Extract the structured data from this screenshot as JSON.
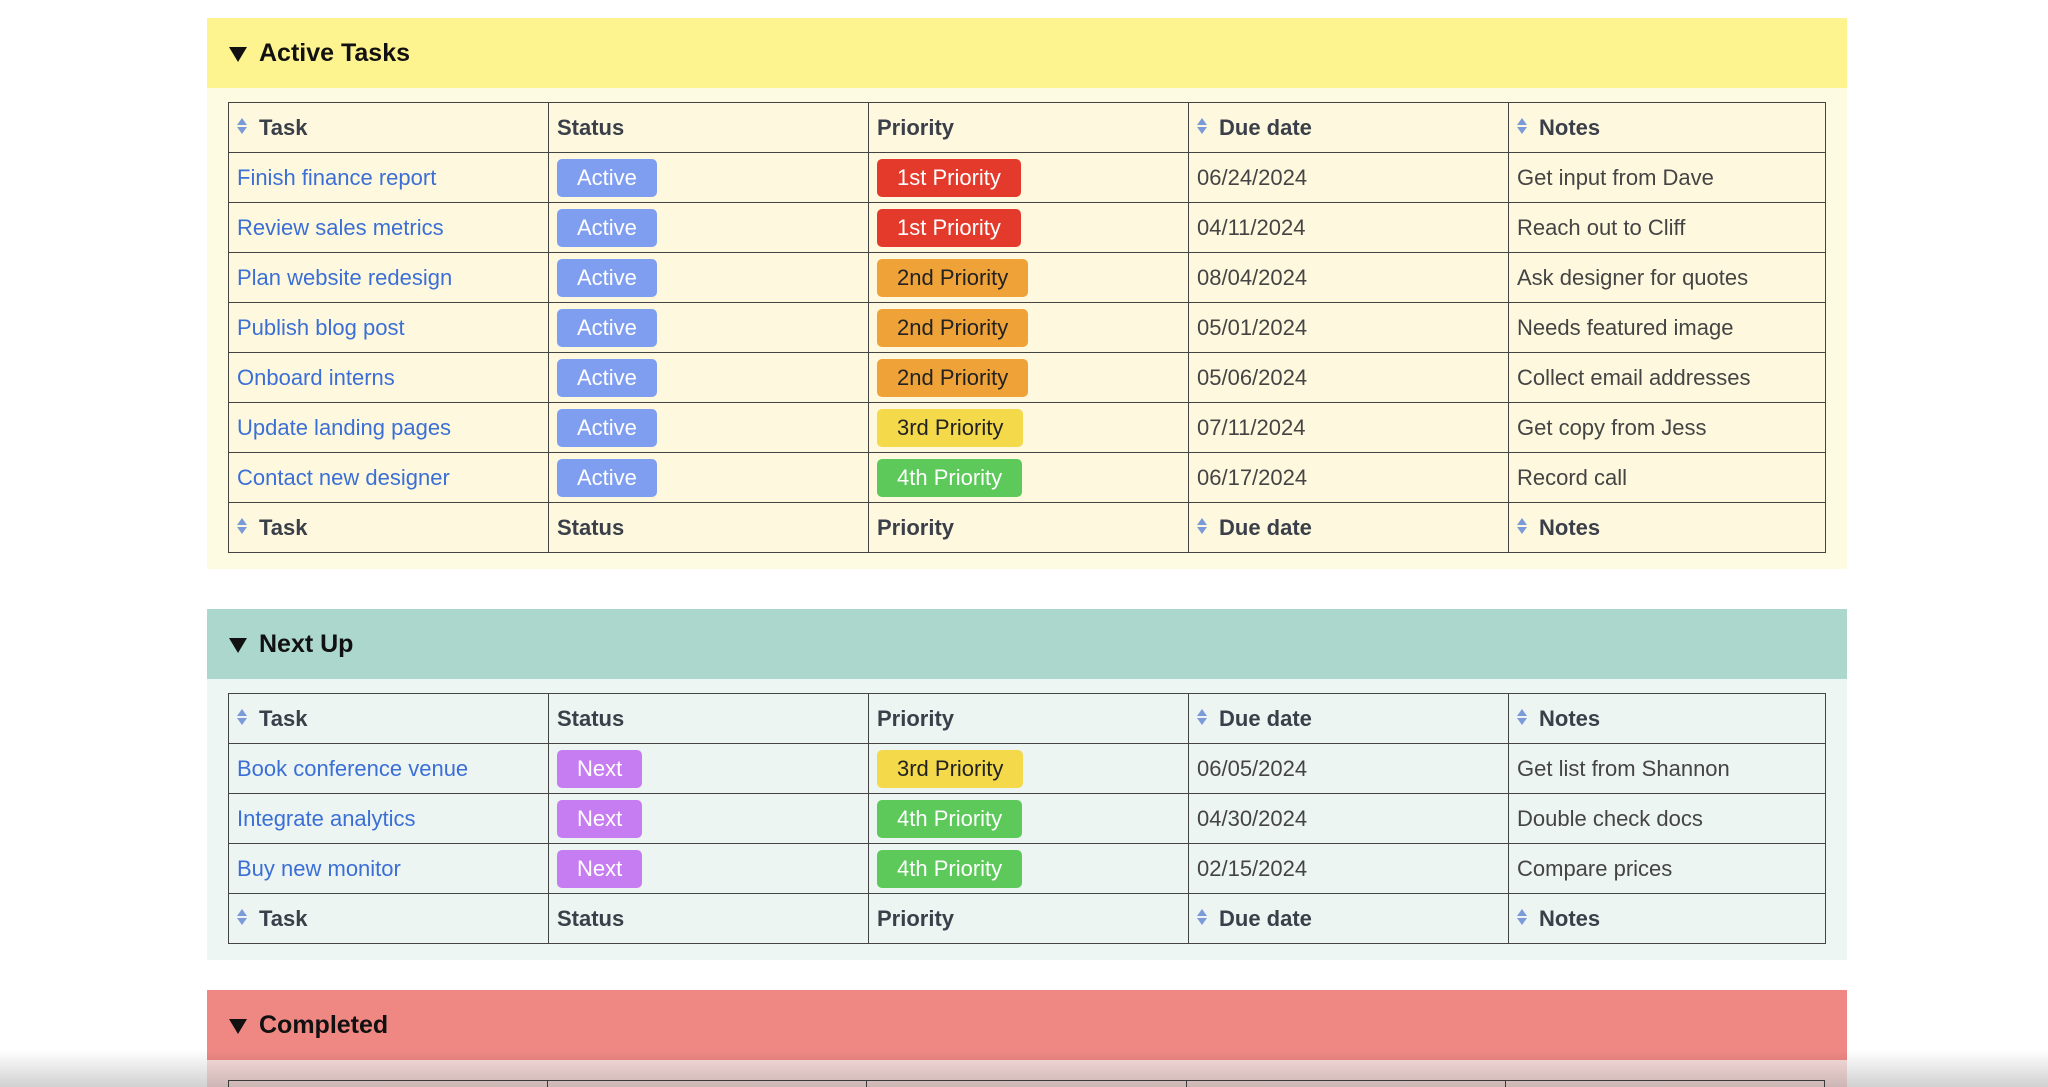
{
  "columns": {
    "task": "Task",
    "status": "Status",
    "priority": "Priority",
    "due_date": "Due date",
    "notes": "Notes"
  },
  "sections": [
    {
      "title": "Active Tasks",
      "color": "#fef48f",
      "rows": [
        {
          "task": "Finish finance report",
          "status": "Active",
          "priority": "1st Priority",
          "due": "06/24/2024",
          "notes": "Get input from Dave"
        },
        {
          "task": "Review sales metrics",
          "status": "Active",
          "priority": "1st Priority",
          "due": "04/11/2024",
          "notes": "Reach out to Cliff"
        },
        {
          "task": "Plan website redesign",
          "status": "Active",
          "priority": "2nd Priority",
          "due": "08/04/2024",
          "notes": "Ask designer for quotes"
        },
        {
          "task": "Publish blog post",
          "status": "Active",
          "priority": "2nd Priority",
          "due": "05/01/2024",
          "notes": "Needs featured image"
        },
        {
          "task": "Onboard interns",
          "status": "Active",
          "priority": "2nd Priority",
          "due": "05/06/2024",
          "notes": "Collect email addresses"
        },
        {
          "task": "Update landing pages",
          "status": "Active",
          "priority": "3rd Priority",
          "due": "07/11/2024",
          "notes": "Get copy from Jess"
        },
        {
          "task": "Contact new designer",
          "status": "Active",
          "priority": "4th Priority",
          "due": "06/17/2024",
          "notes": "Record call"
        }
      ]
    },
    {
      "title": "Next Up",
      "color": "#acd7cc",
      "rows": [
        {
          "task": "Book conference venue",
          "status": "Next",
          "priority": "3rd Priority",
          "due": "06/05/2024",
          "notes": "Get list from Shannon"
        },
        {
          "task": "Integrate analytics",
          "status": "Next",
          "priority": "4th Priority",
          "due": "04/30/2024",
          "notes": "Double check docs"
        },
        {
          "task": "Buy new monitor",
          "status": "Next",
          "priority": "4th Priority",
          "due": "02/15/2024",
          "notes": "Compare prices"
        }
      ]
    },
    {
      "title": "Completed",
      "color": "#ef8883",
      "rows": []
    }
  ]
}
